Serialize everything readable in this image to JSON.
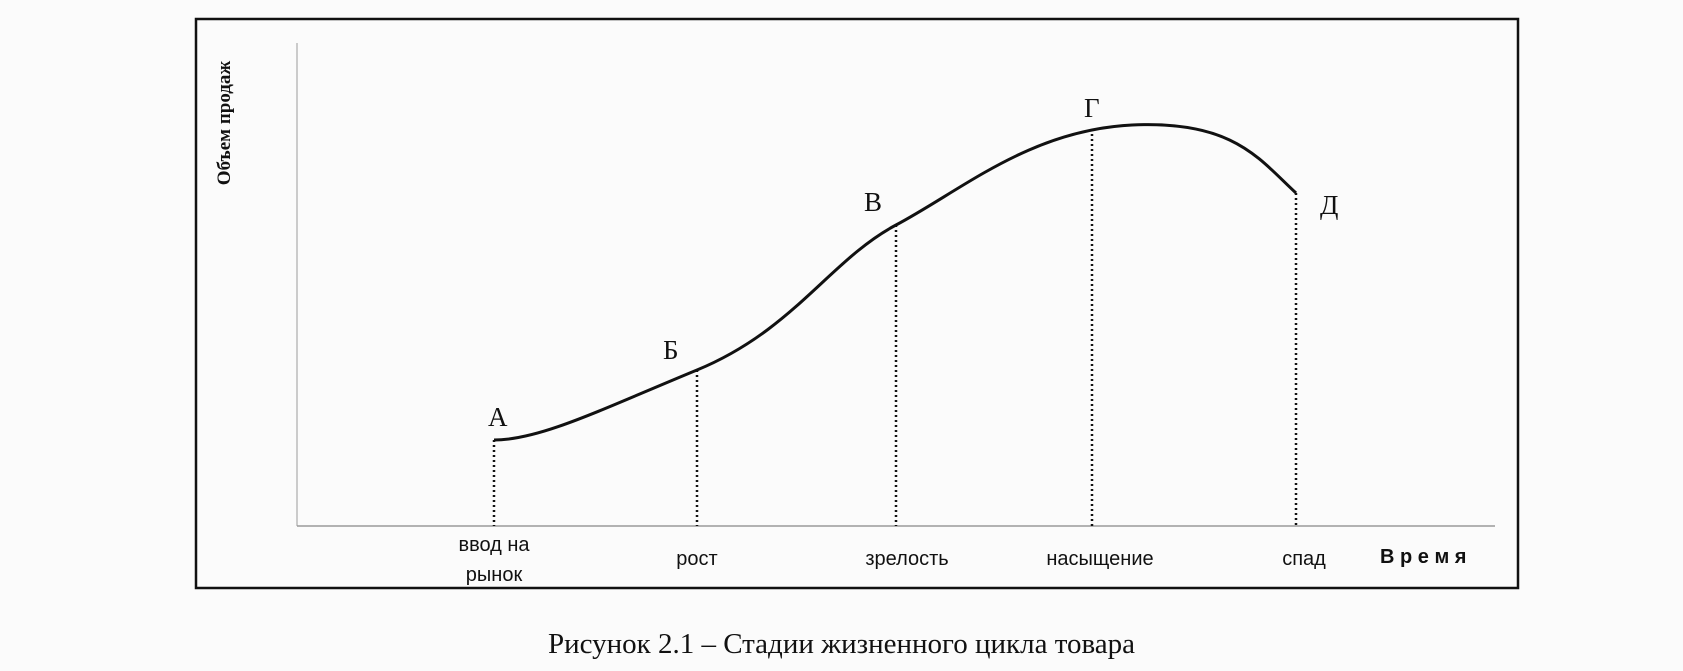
{
  "y_axis_label": "Объем продаж",
  "x_axis_label": "В р е м я",
  "points": [
    "А",
    "Б",
    "В",
    "Г",
    "Д"
  ],
  "stages": [
    "ввод на рынок",
    "рост",
    "зрелость",
    "насыщение",
    "спад"
  ],
  "caption": "Рисунок 2.1 – Стадии жизненного цикла товара"
}
